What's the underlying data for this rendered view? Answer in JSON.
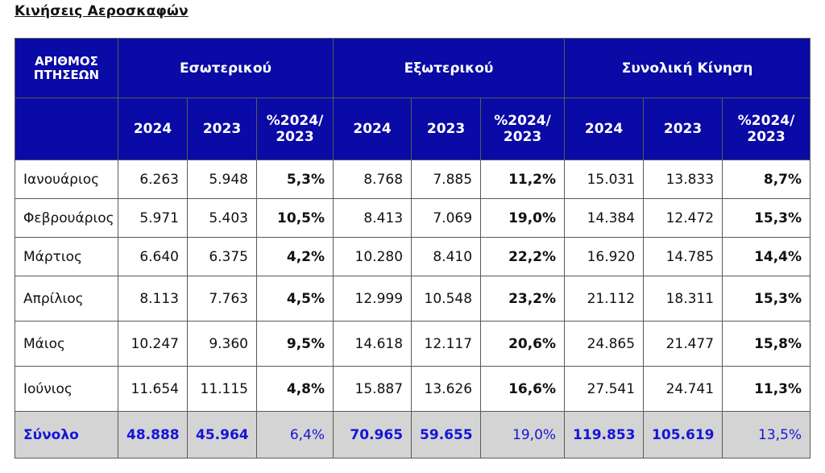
{
  "title": "Κινήσεις Αεροσκαφών",
  "header": {
    "corner": [
      "ΑΡΙΘΜΟΣ",
      "ΠΤΗΣΕΩΝ"
    ],
    "groups": [
      "Εσωτερικού",
      "Εξωτερικού",
      "Συνολική Κίνηση"
    ],
    "sub": [
      "2024",
      "2023",
      "%2024/\n2023"
    ]
  },
  "rows": [
    {
      "month": "Ιανουάριος",
      "values": [
        "6.263",
        "5.948",
        "5,3%",
        "8.768",
        "7.885",
        "11,2%",
        "15.031",
        "13.833",
        "8,7%"
      ]
    },
    {
      "month": "Φεβρουάριος",
      "values": [
        "5.971",
        "5.403",
        "10,5%",
        "8.413",
        "7.069",
        "19,0%",
        "14.384",
        "12.472",
        "15,3%"
      ]
    },
    {
      "month": "Μάρτιος",
      "values": [
        "6.640",
        "6.375",
        "4,2%",
        "10.280",
        "8.410",
        "22,2%",
        "16.920",
        "14.785",
        "14,4%"
      ]
    },
    {
      "month": "Απρίλιος",
      "values": [
        "8.113",
        "7.763",
        "4,5%",
        "12.999",
        "10.548",
        "23,2%",
        "21.112",
        "18.311",
        "15,3%"
      ]
    },
    {
      "month": "Μάιος",
      "values": [
        "10.247",
        "9.360",
        "9,5%",
        "14.618",
        "12.117",
        "20,6%",
        "24.865",
        "21.477",
        "15,8%"
      ]
    },
    {
      "month": "Ιούνιος",
      "values": [
        "11.654",
        "11.115",
        "4,8%",
        "15.887",
        "13.626",
        "16,6%",
        "27.541",
        "24.741",
        "11,3%"
      ]
    }
  ],
  "total": {
    "label": "Σύνολο",
    "values": [
      "48.888",
      "45.964",
      "6,4%",
      "70.965",
      "59.655",
      "19,0%",
      "119.853",
      "105.619",
      "13,5%"
    ]
  },
  "colors": {
    "header_bg": "#0a0aa6",
    "header_text": "#ffffff",
    "total_bg": "#d4d4d4",
    "total_text": "#1515d8"
  }
}
